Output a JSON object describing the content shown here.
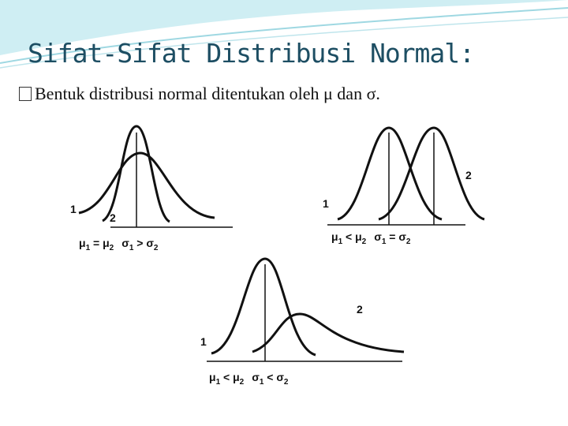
{
  "title": "Sifat-Sifat Distribusi Normal:",
  "subtitle": "Bentuk distribusi normal ditentukan oleh μ dan σ.",
  "diagrams": [
    {
      "labels": [
        "1",
        "2"
      ],
      "caption": [
        "μ",
        "1",
        " = μ",
        "2",
        "σ",
        "1",
        " > σ",
        "2"
      ]
    },
    {
      "labels": [
        "1",
        "2"
      ],
      "caption": [
        "μ",
        "1",
        " < μ",
        "2",
        "σ",
        "1",
        " = σ",
        "2"
      ]
    },
    {
      "labels": [
        "1",
        "2"
      ],
      "caption": [
        "μ",
        "1",
        " < μ",
        "2",
        "σ",
        "1",
        " < σ",
        "2"
      ]
    }
  ]
}
